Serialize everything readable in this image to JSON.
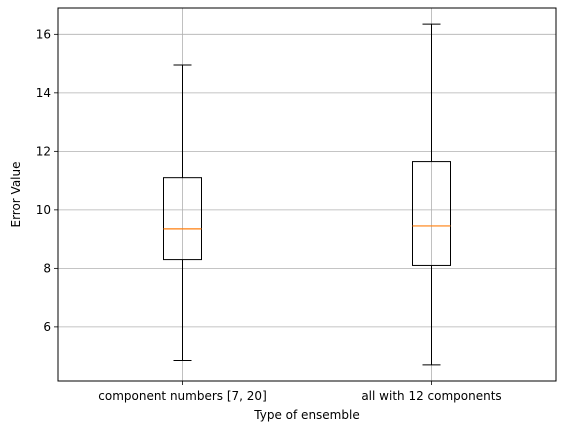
{
  "chart_data": {
    "type": "boxplot",
    "title": "",
    "xlabel": "Type of ensemble",
    "ylabel": "Error Value",
    "categories": [
      "component numbers [7, 20]",
      "all with 12 components"
    ],
    "boxes": [
      {
        "whisker_low": 4.85,
        "q1": 8.3,
        "median": 9.35,
        "q3": 11.1,
        "whisker_high": 14.95
      },
      {
        "whisker_low": 4.7,
        "q1": 8.1,
        "median": 9.45,
        "q3": 11.65,
        "whisker_high": 16.35
      }
    ],
    "ylim": [
      4.15,
      16.9
    ],
    "yticks": [
      6,
      8,
      10,
      12,
      14,
      16
    ],
    "grid": true,
    "colors": {
      "box": "#000000",
      "median": "#ff7f0e",
      "grid": "#b0b0b0"
    }
  }
}
